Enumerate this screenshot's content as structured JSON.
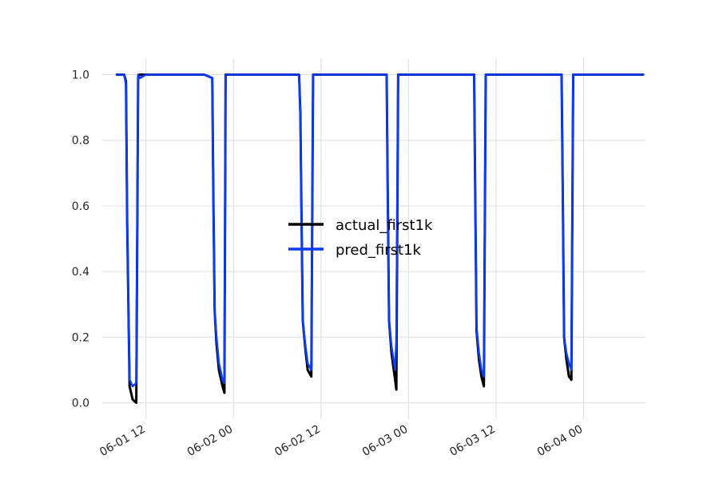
{
  "chart_data": {
    "type": "line",
    "title": "",
    "xlabel": "",
    "ylabel": "",
    "x_axis": {
      "type": "datetime",
      "start": "2023-06-01T06:00",
      "end": "2023-06-04T08:30",
      "ticks": [
        "2023-06-01T12:00",
        "2023-06-02T00:00",
        "2023-06-02T12:00",
        "2023-06-03T00:00",
        "2023-06-03T12:00",
        "2023-06-04T00:00"
      ],
      "tick_labels": [
        "06-01 12",
        "06-02 00",
        "06-02 12",
        "06-03 00",
        "06-03 12",
        "06-04 00"
      ]
    },
    "y_axis": {
      "ylim": [
        -0.05,
        1.05
      ],
      "ticks": [
        0.0,
        0.2,
        0.4,
        0.6,
        0.8,
        1.0
      ],
      "tick_labels": [
        "0.0",
        "0.2",
        "0.4",
        "0.6",
        "0.8",
        "1.0"
      ]
    },
    "grid": true,
    "legend": {
      "placement": "center",
      "entries": [
        "actual_first1k",
        "pred_first1k"
      ]
    },
    "series": [
      {
        "name": "actual_first1k",
        "color": "#000000",
        "points": [
          [
            "2023-06-01T08:00",
            1.0
          ],
          [
            "2023-06-01T09:00",
            1.0
          ],
          [
            "2023-06-01T09:15",
            0.98
          ],
          [
            "2023-06-01T09:25",
            0.55
          ],
          [
            "2023-06-01T09:35",
            0.3
          ],
          [
            "2023-06-01T09:45",
            0.05
          ],
          [
            "2023-06-01T10:10",
            0.01
          ],
          [
            "2023-06-01T10:40",
            0.0
          ],
          [
            "2023-06-01T10:55",
            0.99
          ],
          [
            "2023-06-01T11:05",
            1.0
          ],
          [
            "2023-06-01T12:00",
            1.0
          ],
          [
            "2023-06-01T20:00",
            1.0
          ],
          [
            "2023-06-01T21:05",
            0.99
          ],
          [
            "2023-06-01T21:15",
            0.6
          ],
          [
            "2023-06-01T21:25",
            0.28
          ],
          [
            "2023-06-01T21:40",
            0.18
          ],
          [
            "2023-06-01T22:00",
            0.1
          ],
          [
            "2023-06-01T22:30",
            0.05
          ],
          [
            "2023-06-01T22:45",
            0.03
          ],
          [
            "2023-06-01T22:55",
            1.0
          ],
          [
            "2023-06-02T09:00",
            1.0
          ],
          [
            "2023-06-02T09:10",
            0.88
          ],
          [
            "2023-06-02T09:20",
            0.55
          ],
          [
            "2023-06-02T09:30",
            0.25
          ],
          [
            "2023-06-02T09:50",
            0.17
          ],
          [
            "2023-06-02T10:10",
            0.1
          ],
          [
            "2023-06-02T10:40",
            0.08
          ],
          [
            "2023-06-02T10:55",
            1.0
          ],
          [
            "2023-06-02T21:00",
            1.0
          ],
          [
            "2023-06-02T21:10",
            0.6
          ],
          [
            "2023-06-02T21:20",
            0.25
          ],
          [
            "2023-06-02T21:40",
            0.15
          ],
          [
            "2023-06-02T22:10",
            0.07
          ],
          [
            "2023-06-02T22:20",
            0.04
          ],
          [
            "2023-06-02T22:35",
            1.0
          ],
          [
            "2023-06-03T09:00",
            1.0
          ],
          [
            "2023-06-03T09:10",
            0.6
          ],
          [
            "2023-06-03T09:20",
            0.22
          ],
          [
            "2023-06-03T09:40",
            0.13
          ],
          [
            "2023-06-03T10:00",
            0.08
          ],
          [
            "2023-06-03T10:20",
            0.05
          ],
          [
            "2023-06-03T10:35",
            1.0
          ],
          [
            "2023-06-03T21:00",
            1.0
          ],
          [
            "2023-06-03T21:10",
            0.6
          ],
          [
            "2023-06-03T21:20",
            0.2
          ],
          [
            "2023-06-03T21:40",
            0.13
          ],
          [
            "2023-06-03T22:00",
            0.08
          ],
          [
            "2023-06-03T22:20",
            0.07
          ],
          [
            "2023-06-03T22:35",
            1.0
          ],
          [
            "2023-06-04T08:10",
            1.0
          ]
        ]
      },
      {
        "name": "pred_first1k",
        "color": "#0a3cff",
        "points": [
          [
            "2023-06-01T08:00",
            1.0
          ],
          [
            "2023-06-01T09:00",
            1.0
          ],
          [
            "2023-06-01T09:15",
            0.97
          ],
          [
            "2023-06-01T09:25",
            0.55
          ],
          [
            "2023-06-01T09:35",
            0.3
          ],
          [
            "2023-06-01T09:45",
            0.07
          ],
          [
            "2023-06-01T10:10",
            0.05
          ],
          [
            "2023-06-01T10:40",
            0.06
          ],
          [
            "2023-06-01T10:55",
            1.0
          ],
          [
            "2023-06-01T11:10",
            0.99
          ],
          [
            "2023-06-01T12:00",
            1.0
          ],
          [
            "2023-06-01T20:00",
            1.0
          ],
          [
            "2023-06-01T21:05",
            0.99
          ],
          [
            "2023-06-01T21:15",
            0.6
          ],
          [
            "2023-06-01T21:25",
            0.28
          ],
          [
            "2023-06-01T21:40",
            0.2
          ],
          [
            "2023-06-01T22:00",
            0.12
          ],
          [
            "2023-06-01T22:30",
            0.07
          ],
          [
            "2023-06-01T22:45",
            0.06
          ],
          [
            "2023-06-01T22:55",
            1.0
          ],
          [
            "2023-06-02T09:00",
            1.0
          ],
          [
            "2023-06-02T09:10",
            0.87
          ],
          [
            "2023-06-02T09:20",
            0.55
          ],
          [
            "2023-06-02T09:30",
            0.25
          ],
          [
            "2023-06-02T09:50",
            0.18
          ],
          [
            "2023-06-02T10:10",
            0.12
          ],
          [
            "2023-06-02T10:40",
            0.1
          ],
          [
            "2023-06-02T10:55",
            1.0
          ],
          [
            "2023-06-02T21:00",
            1.0
          ],
          [
            "2023-06-02T21:10",
            0.6
          ],
          [
            "2023-06-02T21:20",
            0.25
          ],
          [
            "2023-06-02T21:40",
            0.17
          ],
          [
            "2023-06-02T22:10",
            0.1
          ],
          [
            "2023-06-02T22:20",
            0.19
          ],
          [
            "2023-06-02T22:35",
            1.0
          ],
          [
            "2023-06-03T09:00",
            1.0
          ],
          [
            "2023-06-03T09:10",
            0.6
          ],
          [
            "2023-06-03T09:20",
            0.23
          ],
          [
            "2023-06-03T09:40",
            0.15
          ],
          [
            "2023-06-03T10:00",
            0.1
          ],
          [
            "2023-06-03T10:20",
            0.08
          ],
          [
            "2023-06-03T10:35",
            1.0
          ],
          [
            "2023-06-03T21:00",
            1.0
          ],
          [
            "2023-06-03T21:10",
            0.6
          ],
          [
            "2023-06-03T21:20",
            0.2
          ],
          [
            "2023-06-03T21:40",
            0.15
          ],
          [
            "2023-06-03T22:00",
            0.12
          ],
          [
            "2023-06-03T22:20",
            0.1
          ],
          [
            "2023-06-03T22:35",
            1.0
          ],
          [
            "2023-06-04T08:10",
            1.0
          ]
        ]
      }
    ]
  }
}
